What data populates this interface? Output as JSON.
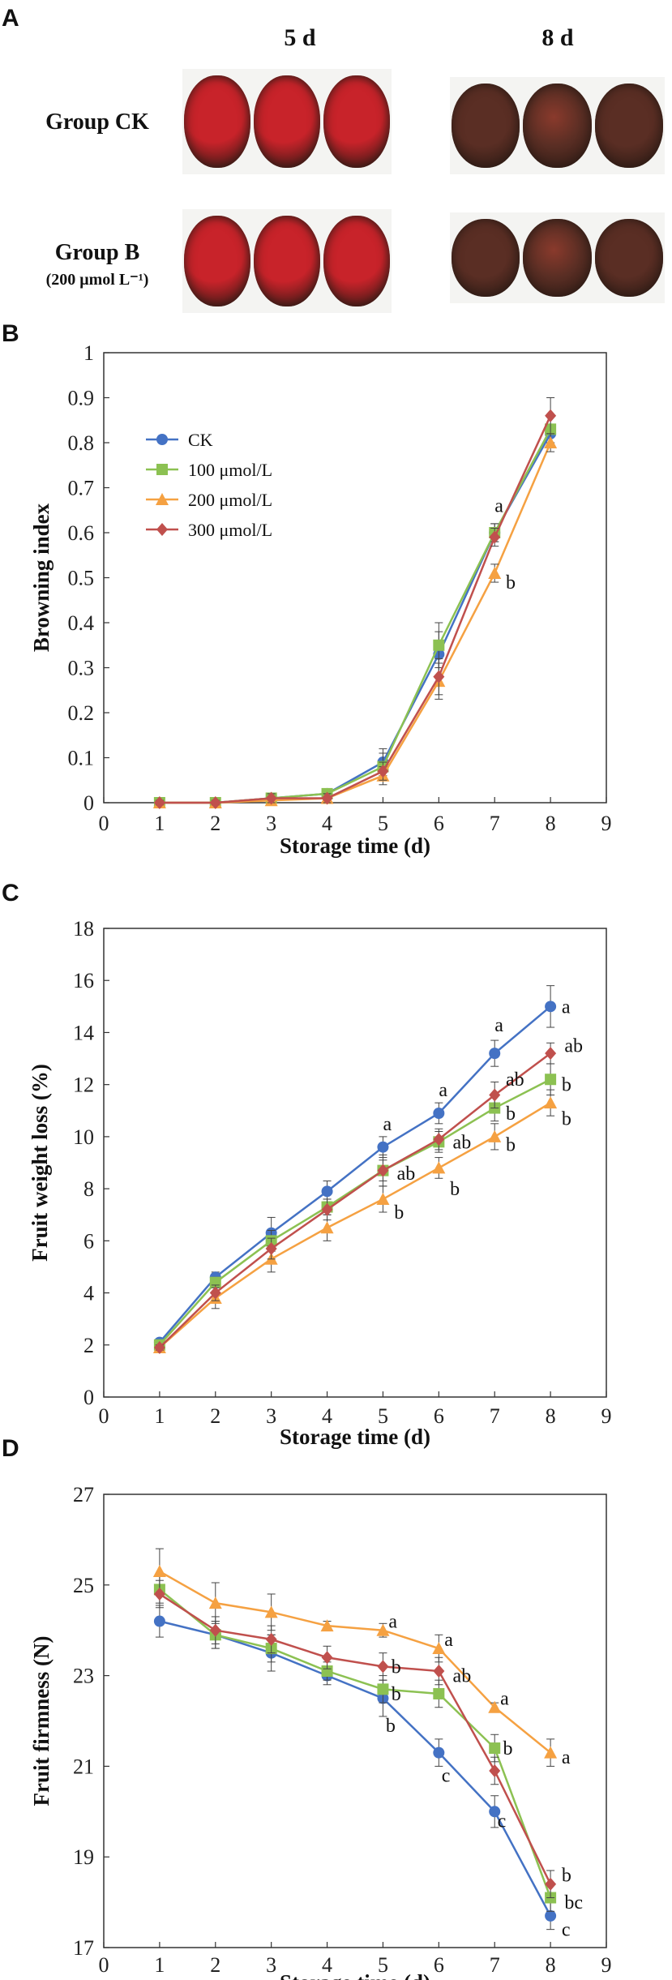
{
  "panels": {
    "a": "A",
    "b": "B",
    "c": "C",
    "d": "D"
  },
  "photos": {
    "col_headers": [
      "5 d",
      "8 d"
    ],
    "rows": [
      {
        "label": "Group CK",
        "sublabel": ""
      },
      {
        "label": "Group B",
        "sublabel": "(200 μmol L⁻¹)"
      }
    ],
    "colors": {
      "fresh": "#c8232a",
      "browned": "#5a2e24",
      "spines": "#2a1a14"
    }
  },
  "series_meta": [
    {
      "name": "CK",
      "color": "#4472c4",
      "marker": "circle"
    },
    {
      "name": "100 μmol/L",
      "color": "#8cc152",
      "marker": "square"
    },
    {
      "name": "200 μmol/L",
      "color": "#f5a142",
      "marker": "triangle"
    },
    {
      "name": "300 μmol/L",
      "color": "#c0504d",
      "marker": "diamond"
    }
  ],
  "chart_data": [
    {
      "type": "line",
      "panel": "B",
      "xlabel": "Storage time (d)",
      "ylabel": "Browning index",
      "xlim": [
        0,
        9
      ],
      "ylim": [
        0,
        1
      ],
      "xticks": [
        "0",
        "1",
        "2",
        "3",
        "4",
        "5",
        "6",
        "7",
        "8",
        "9"
      ],
      "yticks": [
        "0",
        "0.1",
        "0.2",
        "0.3",
        "0.4",
        "0.5",
        "0.6",
        "0.7",
        "0.8",
        "0.9",
        "1"
      ],
      "x": [
        1,
        2,
        3,
        4,
        5,
        6,
        7,
        8
      ],
      "legend": "top-left",
      "series": [
        {
          "name": "CK",
          "values": [
            0,
            0,
            0.01,
            0.02,
            0.09,
            0.33,
            0.6,
            0.82
          ],
          "err": [
            0.005,
            0.005,
            0.01,
            0.01,
            0.03,
            0.05,
            0.02,
            0.02
          ]
        },
        {
          "name": "100 μmol/L",
          "values": [
            0,
            0,
            0.01,
            0.02,
            0.08,
            0.35,
            0.6,
            0.83
          ],
          "err": [
            0.005,
            0.005,
            0.01,
            0.01,
            0.03,
            0.05,
            0.02,
            0.03
          ]
        },
        {
          "name": "200 μmol/L",
          "values": [
            0,
            0,
            0.005,
            0.01,
            0.06,
            0.27,
            0.51,
            0.8
          ],
          "err": [
            0.005,
            0.005,
            0.005,
            0.01,
            0.02,
            0.04,
            0.02,
            0.02
          ]
        },
        {
          "name": "300 μmol/L",
          "values": [
            0,
            0,
            0.01,
            0.01,
            0.07,
            0.28,
            0.59,
            0.86
          ],
          "err": [
            0.005,
            0.005,
            0.01,
            0.01,
            0.02,
            0.04,
            0.02,
            0.04
          ]
        }
      ],
      "annotations": [
        {
          "x": 7,
          "y": 0.66,
          "text": "a"
        },
        {
          "x": 7.2,
          "y": 0.49,
          "text": "b"
        }
      ]
    },
    {
      "type": "line",
      "panel": "C",
      "xlabel": "Storage time (d)",
      "ylabel": "Fruit weight loss (%)",
      "xlim": [
        0,
        9
      ],
      "ylim": [
        0,
        18
      ],
      "xticks": [
        "0",
        "1",
        "2",
        "3",
        "4",
        "5",
        "6",
        "7",
        "8",
        "9"
      ],
      "yticks": [
        "0",
        "2",
        "4",
        "6",
        "8",
        "10",
        "12",
        "14",
        "16",
        "18"
      ],
      "x": [
        1,
        2,
        3,
        4,
        5,
        6,
        7,
        8
      ],
      "series": [
        {
          "name": "CK",
          "values": [
            2.1,
            4.6,
            6.3,
            7.9,
            9.6,
            10.9,
            13.2,
            15.0
          ],
          "err": [
            0.1,
            0.2,
            0.6,
            0.4,
            0.4,
            0.4,
            0.5,
            0.8
          ]
        },
        {
          "name": "100 μmol/L",
          "values": [
            2.0,
            4.4,
            6.0,
            7.3,
            8.7,
            9.8,
            11.1,
            12.2
          ],
          "err": [
            0.1,
            0.2,
            0.4,
            0.3,
            0.6,
            0.4,
            0.5,
            0.6
          ]
        },
        {
          "name": "200 μmol/L",
          "values": [
            1.9,
            3.8,
            5.3,
            6.5,
            7.6,
            8.8,
            10.0,
            11.3
          ],
          "err": [
            0.1,
            0.4,
            0.5,
            0.5,
            0.5,
            0.4,
            0.5,
            0.5
          ]
        },
        {
          "name": "300 μmol/L",
          "values": [
            1.9,
            4.0,
            5.7,
            7.2,
            8.7,
            9.9,
            11.6,
            13.2
          ],
          "err": [
            0.1,
            0.3,
            0.4,
            0.4,
            0.4,
            0.4,
            0.5,
            0.4
          ]
        }
      ],
      "annotations": [
        {
          "x": 5,
          "y": 10.5,
          "text": "a"
        },
        {
          "x": 5.25,
          "y": 8.6,
          "text": "ab"
        },
        {
          "x": 5.2,
          "y": 7.1,
          "text": "b"
        },
        {
          "x": 6,
          "y": 11.8,
          "text": "a"
        },
        {
          "x": 6.25,
          "y": 9.8,
          "text": "ab"
        },
        {
          "x": 6.2,
          "y": 8.0,
          "text": "b"
        },
        {
          "x": 7,
          "y": 14.3,
          "text": "a"
        },
        {
          "x": 7.2,
          "y": 12.2,
          "text": "ab"
        },
        {
          "x": 7.2,
          "y": 10.9,
          "text": "b"
        },
        {
          "x": 7.2,
          "y": 9.7,
          "text": "b"
        },
        {
          "x": 8.2,
          "y": 15.0,
          "text": "a"
        },
        {
          "x": 8.25,
          "y": 13.5,
          "text": "ab"
        },
        {
          "x": 8.2,
          "y": 12.0,
          "text": "b"
        },
        {
          "x": 8.2,
          "y": 10.7,
          "text": "b"
        }
      ]
    },
    {
      "type": "line",
      "panel": "D",
      "xlabel": "Storage time (d)",
      "ylabel": "Fruit firmness (N)",
      "xlim": [
        0,
        9
      ],
      "ylim": [
        17,
        27
      ],
      "xticks": [
        "0",
        "1",
        "2",
        "3",
        "4",
        "5",
        "6",
        "7",
        "8",
        "9"
      ],
      "yticks": [
        "17",
        "19",
        "21",
        "23",
        "25",
        "27"
      ],
      "x": [
        1,
        2,
        3,
        4,
        5,
        6,
        7,
        8
      ],
      "series": [
        {
          "name": "CK",
          "values": [
            24.2,
            23.9,
            23.5,
            23.0,
            22.5,
            21.3,
            20.0,
            17.7
          ],
          "err": [
            0.35,
            0.3,
            0.4,
            0.2,
            0.4,
            0.3,
            0.35,
            0.3
          ]
        },
        {
          "name": "100 μmol/L",
          "values": [
            24.9,
            23.9,
            23.6,
            23.1,
            22.7,
            22.6,
            21.4,
            18.1
          ],
          "err": [
            0.3,
            0.3,
            0.3,
            0.2,
            0.3,
            0.3,
            0.3,
            0.3
          ]
        },
        {
          "name": "200 μmol/L",
          "values": [
            25.3,
            24.6,
            24.4,
            24.1,
            24.0,
            23.6,
            22.3,
            21.3
          ],
          "err": [
            0.5,
            0.45,
            0.4,
            0.1,
            0.15,
            0.3,
            0.1,
            0.3
          ]
        },
        {
          "name": "300 μmol/L",
          "values": [
            24.8,
            24.0,
            23.8,
            23.4,
            23.2,
            23.1,
            20.9,
            18.4
          ],
          "err": [
            0.3,
            0.3,
            0.3,
            0.25,
            0.3,
            0.3,
            0.3,
            0.3
          ]
        }
      ],
      "annotations": [
        {
          "x": 5.1,
          "y": 24.2,
          "text": "a"
        },
        {
          "x": 5.15,
          "y": 23.2,
          "text": "b"
        },
        {
          "x": 5.15,
          "y": 22.6,
          "text": "b"
        },
        {
          "x": 5.05,
          "y": 21.9,
          "text": "b"
        },
        {
          "x": 6.1,
          "y": 23.8,
          "text": "a"
        },
        {
          "x": 6.25,
          "y": 23.0,
          "text": "ab"
        },
        {
          "x": 6.05,
          "y": 20.8,
          "text": "c"
        },
        {
          "x": 7.1,
          "y": 22.5,
          "text": "a"
        },
        {
          "x": 7.15,
          "y": 21.4,
          "text": "b"
        },
        {
          "x": 7.05,
          "y": 19.8,
          "text": "c"
        },
        {
          "x": 8.2,
          "y": 21.2,
          "text": "a"
        },
        {
          "x": 8.2,
          "y": 18.6,
          "text": "b"
        },
        {
          "x": 8.25,
          "y": 18.0,
          "text": "bc"
        },
        {
          "x": 8.2,
          "y": 17.4,
          "text": "c"
        }
      ]
    }
  ]
}
